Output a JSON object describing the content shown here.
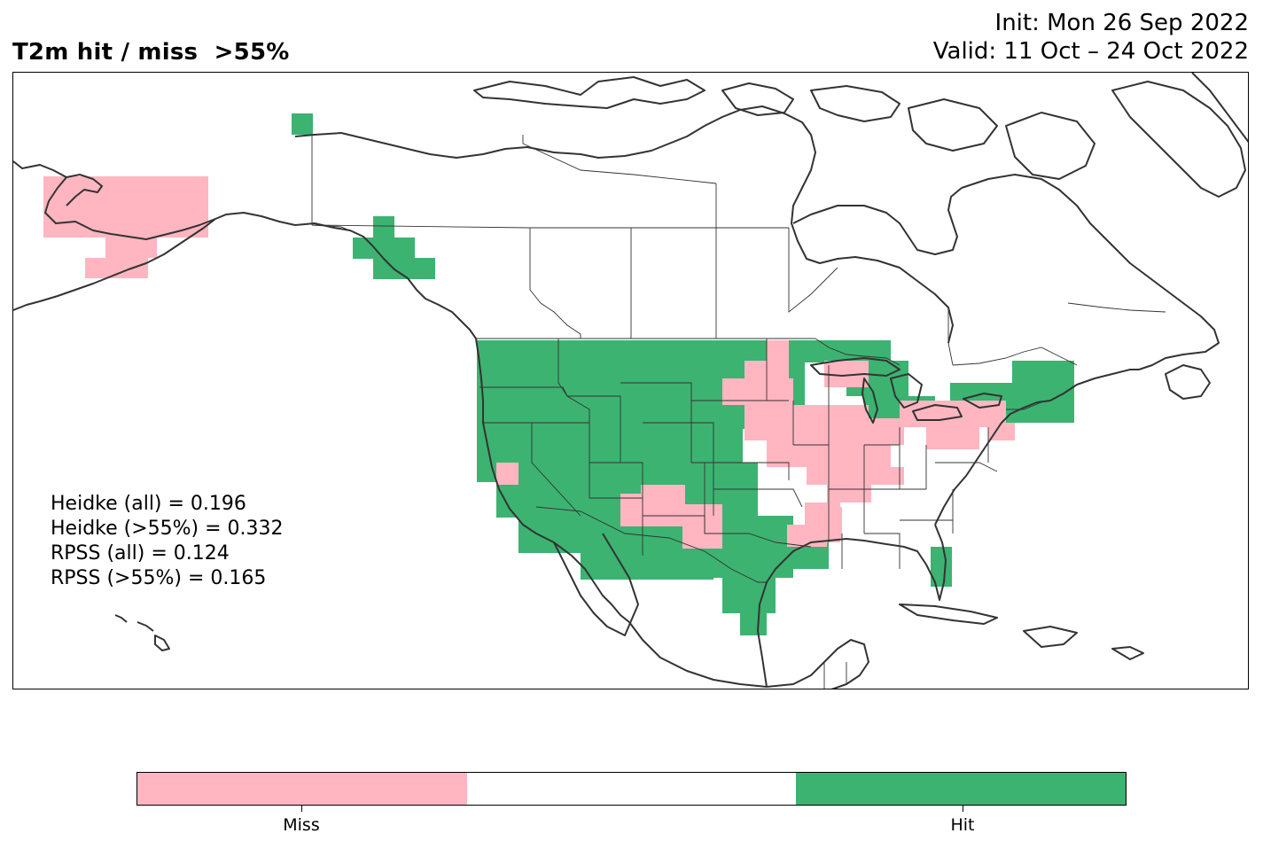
{
  "title": "T2m hit / miss  >55%",
  "init_text": "Init: Mon 26 Sep 2022",
  "valid_text": "Valid: 11 Oct – 24 Oct 2022",
  "scores": [
    "Heidke (all) = 0.196",
    "Heidke (>55%) = 0.332",
    "RPSS (all) = 0.124",
    "RPSS (>55%) = 0.165"
  ],
  "colors": {
    "miss": "#ffb6c1",
    "neutral": "#ffffff",
    "hit": "#3cb371",
    "coast": "#333333",
    "border": "#333333"
  },
  "colorbar": {
    "labels": [
      "Miss",
      "",
      "Hit"
    ]
  },
  "legend": {
    "miss_label": "Miss",
    "hit_label": "Hit"
  }
}
